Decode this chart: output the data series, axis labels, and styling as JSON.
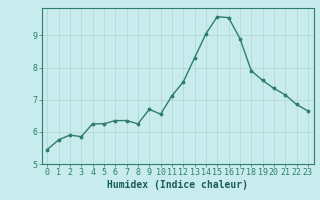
{
  "x": [
    0,
    1,
    2,
    3,
    4,
    5,
    6,
    7,
    8,
    9,
    10,
    11,
    12,
    13,
    14,
    15,
    16,
    17,
    18,
    19,
    20,
    21,
    22,
    23
  ],
  "y": [
    5.45,
    5.75,
    5.9,
    5.85,
    6.25,
    6.25,
    6.35,
    6.35,
    6.25,
    6.7,
    6.55,
    7.12,
    7.55,
    8.3,
    9.05,
    9.58,
    9.55,
    8.9,
    7.9,
    7.6,
    7.35,
    7.15,
    6.85,
    6.65
  ],
  "line_color": "#2e7d6e",
  "marker": ".",
  "marker_size": 3.5,
  "bg_color": "#c8eced",
  "grid_color": "#b0d4d4",
  "axis_color": "#2e7d6e",
  "xlabel": "Humidex (Indice chaleur)",
  "xlim": [
    -0.5,
    23.5
  ],
  "ylim": [
    5.0,
    9.85
  ],
  "yticks": [
    5,
    6,
    7,
    8,
    9
  ],
  "xticks": [
    0,
    1,
    2,
    3,
    4,
    5,
    6,
    7,
    8,
    9,
    10,
    11,
    12,
    13,
    14,
    15,
    16,
    17,
    18,
    19,
    20,
    21,
    22,
    23
  ],
  "font_color": "#1a5a5a",
  "xlabel_fontsize": 7.0,
  "tick_fontsize": 6.0,
  "linewidth": 1.0
}
